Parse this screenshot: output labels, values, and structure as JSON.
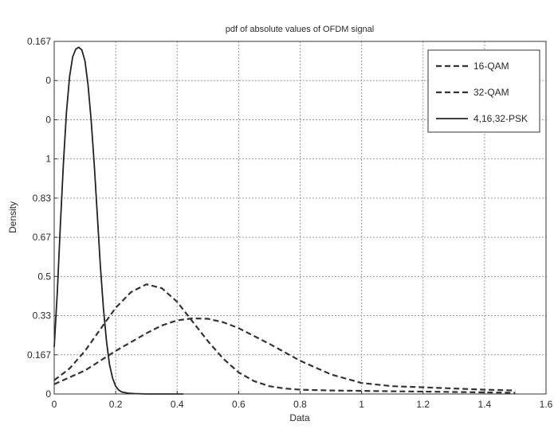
{
  "chart_data": {
    "type": "line",
    "title": "pdf of absolute values of OFDM signal",
    "xlabel": "Data",
    "ylabel": "Density",
    "xlim": [
      0,
      1.6
    ],
    "ylim": [
      0,
      9
    ],
    "grid": true,
    "legend_position": "top-right",
    "x_ticks": [
      {
        "value": 0,
        "label": "0"
      },
      {
        "value": 0.2,
        "label": "0.2"
      },
      {
        "value": 0.4,
        "label": "0.4"
      },
      {
        "value": 0.6,
        "label": "0.6"
      },
      {
        "value": 0.8,
        "label": "0.8"
      },
      {
        "value": 1,
        "label": "1"
      },
      {
        "value": 1.2,
        "label": "1.2"
      },
      {
        "value": 1.4,
        "label": "1.4"
      },
      {
        "value": 1.6,
        "label": "1.6"
      }
    ],
    "y_ticks": [
      {
        "value": 0,
        "label": "0"
      },
      {
        "value": 1,
        "label": "0.167"
      },
      {
        "value": 2,
        "label": "0.33"
      },
      {
        "value": 3,
        "label": "0.5"
      },
      {
        "value": 4,
        "label": "0.67"
      },
      {
        "value": 5,
        "label": "0.83"
      },
      {
        "value": 6,
        "label": "1"
      },
      {
        "value": 7,
        "label": "0"
      },
      {
        "value": 8,
        "label": "0"
      },
      {
        "value": 9,
        "label": "0.167"
      }
    ],
    "series": [
      {
        "name": "16-QAM",
        "style": "dashed",
        "color": "#333333",
        "x": [
          0,
          0.05,
          0.1,
          0.15,
          0.2,
          0.25,
          0.3,
          0.35,
          0.4,
          0.45,
          0.5,
          0.55,
          0.6,
          0.65,
          0.7,
          0.75,
          0.8,
          0.85,
          0.9,
          1.0,
          1.1,
          1.2,
          1.3,
          1.4,
          1.5
        ],
        "y": [
          0.35,
          0.65,
          1.1,
          1.65,
          2.2,
          2.6,
          2.8,
          2.7,
          2.35,
          1.85,
          1.35,
          0.9,
          0.55,
          0.33,
          0.2,
          0.14,
          0.11,
          0.1,
          0.09,
          0.08,
          0.07,
          0.06,
          0.05,
          0.04,
          0.03
        ]
      },
      {
        "name": "32-QAM",
        "style": "dashed",
        "color": "#333333",
        "x": [
          0,
          0.1,
          0.2,
          0.3,
          0.35,
          0.4,
          0.45,
          0.5,
          0.55,
          0.6,
          0.7,
          0.8,
          0.9,
          1.0,
          1.1,
          1.2,
          1.3,
          1.4,
          1.5
        ],
        "y": [
          0.25,
          0.6,
          1.1,
          1.55,
          1.75,
          1.88,
          1.93,
          1.92,
          1.83,
          1.68,
          1.28,
          0.85,
          0.5,
          0.28,
          0.2,
          0.17,
          0.14,
          0.11,
          0.09
        ]
      },
      {
        "name": "4,16,32-PSK",
        "style": "solid",
        "color": "#222222",
        "x": [
          0,
          0.01,
          0.02,
          0.03,
          0.04,
          0.05,
          0.06,
          0.07,
          0.08,
          0.09,
          0.1,
          0.11,
          0.12,
          0.13,
          0.14,
          0.15,
          0.16,
          0.17,
          0.18,
          0.19,
          0.2,
          0.21,
          0.22,
          0.24,
          0.26,
          0.3,
          0.35,
          0.4,
          0.42
        ],
        "y": [
          1.2,
          2.6,
          4.3,
          5.9,
          7.2,
          8.1,
          8.6,
          8.8,
          8.85,
          8.78,
          8.5,
          7.9,
          7.0,
          5.9,
          4.6,
          3.3,
          2.2,
          1.35,
          0.75,
          0.4,
          0.2,
          0.1,
          0.05,
          0.02,
          0.01,
          0.0,
          0.0,
          0.0,
          0.0
        ]
      }
    ]
  }
}
